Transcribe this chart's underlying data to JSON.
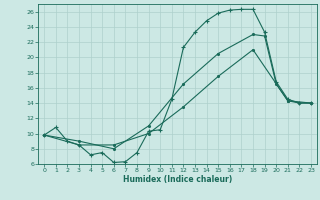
{
  "xlabel": "Humidex (Indice chaleur)",
  "bg_color": "#cce8e4",
  "line_color": "#1a6b5a",
  "grid_color": "#aed0cc",
  "xlim": [
    -0.5,
    23.5
  ],
  "ylim": [
    6,
    27
  ],
  "yticks": [
    6,
    8,
    10,
    12,
    14,
    16,
    18,
    20,
    22,
    24,
    26
  ],
  "xticks": [
    0,
    1,
    2,
    3,
    4,
    5,
    6,
    7,
    8,
    9,
    10,
    11,
    12,
    13,
    14,
    15,
    16,
    17,
    18,
    19,
    20,
    21,
    22,
    23
  ],
  "line1_x": [
    0,
    1,
    2,
    3,
    4,
    5,
    6,
    7,
    8,
    9,
    10,
    11,
    12,
    13,
    14,
    15,
    16,
    17,
    18,
    19,
    20,
    21,
    22,
    23
  ],
  "line1_y": [
    9.8,
    10.8,
    9.0,
    8.5,
    7.2,
    7.5,
    6.2,
    6.3,
    7.5,
    10.3,
    10.5,
    14.5,
    21.3,
    23.3,
    24.8,
    25.8,
    26.2,
    26.3,
    26.3,
    23.3,
    16.8,
    14.5,
    14.0,
    14.0
  ],
  "line2_x": [
    0,
    3,
    6,
    9,
    12,
    15,
    18,
    19,
    20,
    21,
    22,
    23
  ],
  "line2_y": [
    9.8,
    9.0,
    8.0,
    11.0,
    16.5,
    20.5,
    23.0,
    22.8,
    16.5,
    14.3,
    14.0,
    14.0
  ],
  "line3_x": [
    0,
    3,
    6,
    9,
    12,
    15,
    18,
    21,
    23
  ],
  "line3_y": [
    9.8,
    8.5,
    8.5,
    10.0,
    13.5,
    17.5,
    21.0,
    14.3,
    14.0
  ]
}
